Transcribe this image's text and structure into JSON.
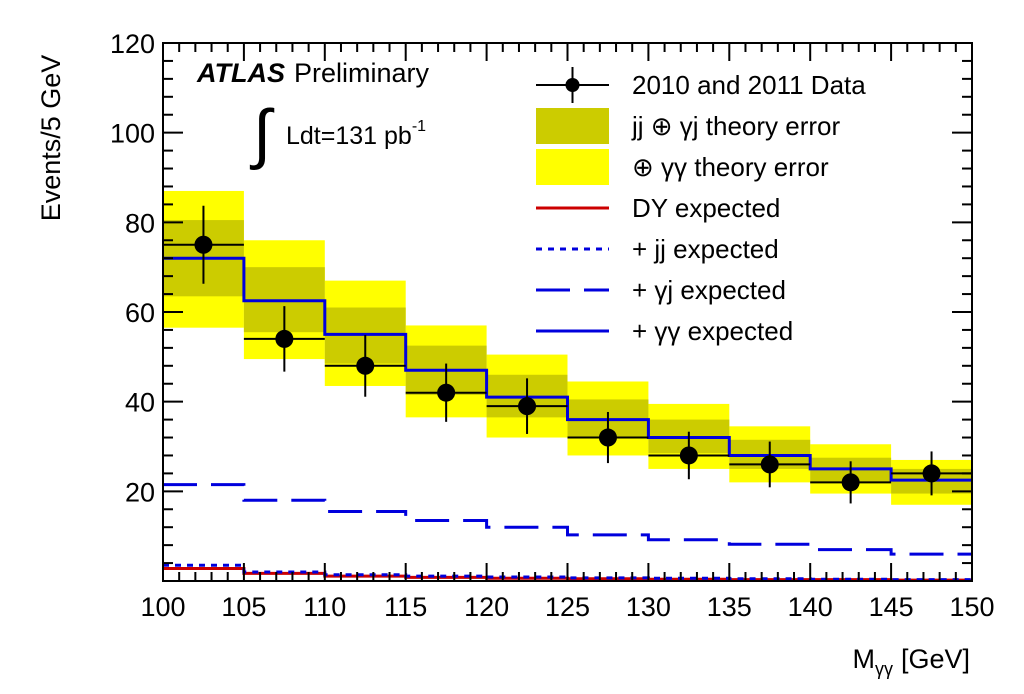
{
  "chart_data": {
    "type": "histogram",
    "title": "",
    "xlabel": "M",
    "xlabel_sub": "γγ",
    "xlabel_unit": "[GeV]",
    "ylabel": "Events/5 GeV",
    "xlim": [
      100,
      150
    ],
    "ylim": [
      0,
      120
    ],
    "xticks": [
      100,
      105,
      110,
      115,
      120,
      125,
      130,
      135,
      140,
      145,
      150
    ],
    "yticks": [
      20,
      40,
      60,
      80,
      100,
      120
    ],
    "grid": false,
    "bin_edges": [
      100,
      105,
      110,
      115,
      120,
      125,
      130,
      135,
      140,
      145,
      150
    ],
    "data": {
      "name": "2010 and 2011 Data",
      "x": [
        102.5,
        107.5,
        112.5,
        117.5,
        122.5,
        127.5,
        132.5,
        137.5,
        142.5,
        147.5
      ],
      "y": [
        75,
        54,
        48,
        42,
        39,
        32,
        28,
        26,
        22,
        24
      ],
      "yerr": [
        8.7,
        7.3,
        6.9,
        6.5,
        6.2,
        5.7,
        5.3,
        5.1,
        4.7,
        4.9
      ]
    },
    "bands": [
      {
        "name": "⊕ γγ theory error",
        "color": "#ffff00",
        "low": [
          56.5,
          49.5,
          43.5,
          36.5,
          32,
          28,
          25,
          22,
          19.5,
          17
        ],
        "high": [
          87,
          76,
          67,
          57,
          50.5,
          44.5,
          39.5,
          34.5,
          30.5,
          27
        ]
      },
      {
        "name": "jj ⊕ γj theory error",
        "color": "#cccc00",
        "low": [
          63.5,
          55.5,
          48.5,
          41.5,
          36.5,
          32,
          28.5,
          25,
          22,
          19.5
        ],
        "high": [
          80.5,
          70,
          61,
          52.5,
          46,
          40.5,
          36,
          31.5,
          27.5,
          25
        ]
      }
    ],
    "series": [
      {
        "name": "DY expected",
        "color": "#cc0000",
        "style": "solid",
        "values": [
          2.8,
          1.7,
          1.1,
          0.8,
          0.6,
          0.5,
          0.4,
          0.3,
          0.3,
          0.2
        ]
      },
      {
        "name": "+ jj expected",
        "color": "#0000dd",
        "style": "dotted",
        "values": [
          3.5,
          2.0,
          1.4,
          1.1,
          0.9,
          0.7,
          0.6,
          0.5,
          0.4,
          0.3
        ]
      },
      {
        "name": "+ γj expected",
        "color": "#0000dd",
        "style": "dashed",
        "values": [
          21.5,
          18,
          15.5,
          13.5,
          12,
          10.3,
          9.2,
          8.2,
          7.0,
          6.0
        ]
      },
      {
        "name": "+ γγ expected",
        "color": "#0000dd",
        "style": "solid",
        "values": [
          72,
          62.5,
          55,
          47,
          41,
          36,
          32,
          28,
          25,
          22.5
        ]
      }
    ],
    "legend": {
      "position": "top-right",
      "entries": [
        {
          "label": "2010 and 2011 Data",
          "kind": "data"
        },
        {
          "label": "jj ⊕ γj theory error",
          "kind": "band",
          "ref": 1
        },
        {
          "label": "⊕ γγ theory error",
          "kind": "band",
          "ref": 0
        },
        {
          "label": "DY expected",
          "kind": "line",
          "ref": 0
        },
        {
          "label": "+ jj expected",
          "kind": "line",
          "ref": 1
        },
        {
          "label": "+ γj expected",
          "kind": "line",
          "ref": 2
        },
        {
          "label": "+ γγ expected",
          "kind": "line",
          "ref": 3
        }
      ]
    },
    "annotations": {
      "experiment": "ATLAS",
      "status": "Preliminary",
      "integral_sign": "∫",
      "lumi_text": "Ldt=131 pb",
      "lumi_exp": "-1"
    }
  }
}
